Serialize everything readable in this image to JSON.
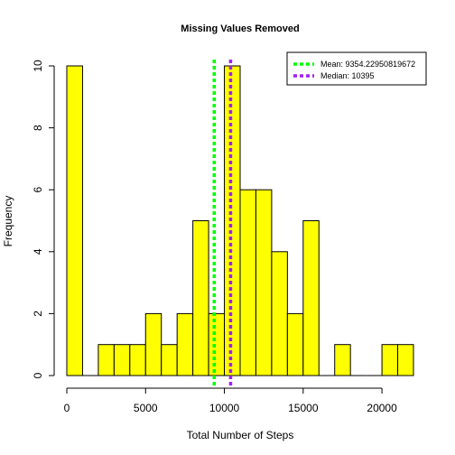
{
  "chart_data": {
    "type": "bar",
    "title": "Missing Values Removed",
    "xlabel": "Total Number of Steps",
    "ylabel": "Frequency",
    "bin_width": 1000,
    "bins_start": [
      0,
      1000,
      2000,
      3000,
      4000,
      5000,
      6000,
      7000,
      8000,
      9000,
      10000,
      11000,
      12000,
      13000,
      14000,
      15000,
      16000,
      17000,
      18000,
      19000,
      20000,
      21000
    ],
    "values": [
      10,
      0,
      1,
      1,
      1,
      2,
      1,
      2,
      5,
      2,
      10,
      6,
      6,
      4,
      2,
      5,
      0,
      1,
      0,
      0,
      1,
      1
    ],
    "xlim": [
      0,
      22000
    ],
    "ylim": [
      0,
      10
    ],
    "x_ticks": [
      0,
      5000,
      10000,
      15000,
      20000
    ],
    "y_ticks": [
      0,
      2,
      4,
      6,
      8,
      10
    ],
    "bar_color": "#ffff00",
    "bar_edge_color": "#000000",
    "mean": {
      "value": 9354.22950819672,
      "label": "Mean:  9354.22950819672",
      "color": "#00ff00"
    },
    "median": {
      "value": 10395,
      "label": "Median:  10395",
      "color": "#a020f0"
    },
    "legend_position": "top-right"
  }
}
